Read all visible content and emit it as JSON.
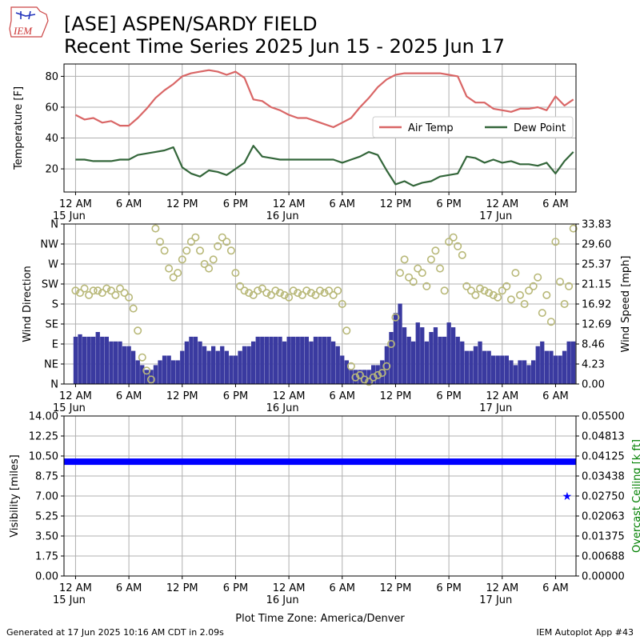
{
  "header": {
    "logo_text": "IEM",
    "title_line1": "[ASE] ASPEN/SARDY FIELD",
    "title_line2": "Recent Time Series 2025 Jun 15 - 2025 Jun 17"
  },
  "footer": {
    "left": "Generated at 17 Jun 2025 10:16 AM CDT in 2.09s",
    "right": "IEM Autoplot App #43"
  },
  "colors": {
    "air_temp": "#d96666",
    "dew_point": "#33663a",
    "wind_dir": "#b8b878",
    "wind_speed": "#3a3aa0",
    "wind_gust": "#7070ee",
    "visibility": "#0000ff",
    "ceiling": "#008000",
    "grid": "#b0b0b0"
  },
  "chart_data": [
    {
      "type": "line",
      "ylabel": "Temperature [F]",
      "ylim": [
        5,
        88
      ],
      "yticks": [
        "20",
        "40",
        "60",
        "80"
      ],
      "xlim": [
        -1.3,
        56.3
      ],
      "xticks": [
        {
          "h": 0,
          "label": "12 AM",
          "sub": "15 Jun"
        },
        {
          "h": 6,
          "label": "6 AM",
          "sub": ""
        },
        {
          "h": 12,
          "label": "12 PM",
          "sub": ""
        },
        {
          "h": 18,
          "label": "6 PM",
          "sub": ""
        },
        {
          "h": 24,
          "label": "12 AM",
          "sub": "16 Jun"
        },
        {
          "h": 30,
          "label": "6 AM",
          "sub": ""
        },
        {
          "h": 36,
          "label": "12 PM",
          "sub": ""
        },
        {
          "h": 42,
          "label": "6 PM",
          "sub": ""
        },
        {
          "h": 48,
          "label": "12 AM",
          "sub": "17 Jun"
        },
        {
          "h": 54,
          "label": "6 AM",
          "sub": ""
        }
      ],
      "legend_position": "right",
      "series": [
        {
          "name": "Air Temp",
          "x": [
            0,
            1,
            2,
            3,
            4,
            5,
            6,
            7,
            8,
            9,
            10,
            11,
            12,
            13,
            14,
            15,
            16,
            17,
            18,
            19,
            20,
            21,
            22,
            23,
            24,
            25,
            26,
            27,
            28,
            29,
            30,
            31,
            32,
            33,
            34,
            35,
            36,
            37,
            38,
            39,
            40,
            41,
            42,
            43,
            44,
            45,
            46,
            47,
            48,
            49,
            50,
            51,
            52,
            53,
            54,
            55,
            56
          ],
          "y": [
            55,
            52,
            53,
            50,
            51,
            48,
            48,
            53,
            59,
            66,
            71,
            75,
            80,
            82,
            83,
            84,
            83,
            81,
            83,
            79,
            65,
            64,
            60,
            58,
            55,
            53,
            53,
            51,
            49,
            47,
            50,
            53,
            60,
            66,
            73,
            78,
            81,
            82,
            82,
            82,
            82,
            82,
            81,
            80,
            67,
            63,
            63,
            59,
            58,
            57,
            59,
            59,
            60,
            58,
            67,
            61,
            65
          ]
        },
        {
          "name": "Dew Point",
          "x": [
            0,
            1,
            2,
            3,
            4,
            5,
            6,
            7,
            8,
            9,
            10,
            11,
            12,
            13,
            14,
            15,
            16,
            17,
            18,
            19,
            20,
            21,
            22,
            23,
            24,
            25,
            26,
            27,
            28,
            29,
            30,
            31,
            32,
            33,
            34,
            35,
            36,
            37,
            38,
            39,
            40,
            41,
            42,
            43,
            44,
            45,
            46,
            47,
            48,
            49,
            50,
            51,
            52,
            53,
            54,
            55,
            56
          ],
          "y": [
            26,
            26,
            25,
            25,
            25,
            26,
            26,
            29,
            30,
            31,
            32,
            34,
            21,
            17,
            15,
            19,
            18,
            16,
            20,
            24,
            35,
            28,
            27,
            26,
            26,
            26,
            26,
            26,
            26,
            26,
            24,
            26,
            28,
            31,
            29,
            19,
            10,
            12,
            9,
            11,
            12,
            15,
            16,
            17,
            28,
            27,
            24,
            26,
            24,
            25,
            23,
            23,
            22,
            24,
            17,
            25,
            31
          ]
        }
      ]
    },
    {
      "type": "scatter",
      "ylabel": "Wind Direction",
      "ylabel_right": "Wind Speed [mph]",
      "ylim": [
        0,
        360
      ],
      "yticks": [
        "N",
        "NE",
        "E",
        "SE",
        "S",
        "SW",
        "W",
        "NW",
        "N"
      ],
      "ylim_right": [
        0,
        33.83
      ],
      "yticks_right": [
        "0.00",
        "4.23",
        "8.46",
        "12.69",
        "16.92",
        "21.15",
        "25.37",
        "29.60",
        "33.83"
      ],
      "series": [
        {
          "name": "",
          "kind": "wind direction",
          "x": [
            0,
            0.5,
            1,
            1.5,
            2,
            2.5,
            3,
            3.5,
            4,
            4.5,
            5,
            5.5,
            6,
            6.5,
            7,
            7.5,
            8,
            8.5,
            9,
            9.5,
            10,
            10.5,
            11,
            11.5,
            12,
            12.5,
            13,
            13.5,
            14,
            14.5,
            15,
            15.5,
            16,
            16.5,
            17,
            17.5,
            18,
            18.5,
            19,
            19.5,
            20,
            20.5,
            21,
            21.5,
            22,
            22.5,
            23,
            23.5,
            24,
            24.5,
            25,
            25.5,
            26,
            26.5,
            27,
            27.5,
            28,
            28.5,
            29,
            29.5,
            30,
            30.5,
            31,
            31.5,
            32,
            32.5,
            33,
            33.5,
            34,
            34.5,
            35,
            35.5,
            36,
            36.5,
            37,
            37.5,
            38,
            38.5,
            39,
            39.5,
            40,
            40.5,
            41,
            41.5,
            42,
            42.5,
            43,
            43.5,
            44,
            44.5,
            45,
            45.5,
            46,
            46.5,
            47,
            47.5,
            48,
            48.5,
            49,
            49.5,
            50,
            50.5,
            51,
            51.5,
            52,
            52.5,
            53,
            53.5,
            54,
            54.5,
            55,
            55.5,
            56
          ],
          "y": [
            210,
            205,
            215,
            200,
            210,
            210,
            205,
            215,
            210,
            200,
            215,
            205,
            195,
            170,
            120,
            60,
            30,
            10,
            350,
            320,
            300,
            260,
            240,
            250,
            280,
            300,
            320,
            330,
            300,
            270,
            260,
            280,
            310,
            330,
            320,
            300,
            250,
            220,
            210,
            205,
            200,
            210,
            215,
            205,
            200,
            210,
            205,
            200,
            195,
            210,
            205,
            200,
            210,
            205,
            200,
            210,
            205,
            210,
            200,
            210,
            180,
            120,
            40,
            15,
            20,
            10,
            5,
            15,
            20,
            25,
            40,
            90,
            150,
            250,
            280,
            240,
            230,
            260,
            250,
            220,
            280,
            300,
            260,
            210,
            320,
            330,
            310,
            290,
            220,
            210,
            200,
            215,
            210,
            205,
            200,
            195,
            210,
            220,
            190,
            250,
            200,
            180,
            210,
            220,
            240,
            160,
            200,
            140,
            320,
            230,
            180,
            220,
            350
          ]
        },
        {
          "name": "",
          "kind": "wind speed",
          "x": [
            0,
            0.5,
            1,
            1.5,
            2,
            2.5,
            3,
            3.5,
            4,
            4.5,
            5,
            5.5,
            6,
            6.5,
            7,
            7.5,
            8,
            8.5,
            9,
            9.5,
            10,
            10.5,
            11,
            11.5,
            12,
            12.5,
            13,
            13.5,
            14,
            14.5,
            15,
            15.5,
            16,
            16.5,
            17,
            17.5,
            18,
            18.5,
            19,
            19.5,
            20,
            20.5,
            21,
            21.5,
            22,
            22.5,
            23,
            23.5,
            24,
            24.5,
            25,
            25.5,
            26,
            26.5,
            27,
            27.5,
            28,
            28.5,
            29,
            29.5,
            30,
            30.5,
            31,
            31.5,
            32,
            32.5,
            33,
            33.5,
            34,
            34.5,
            35,
            35.5,
            36,
            36.5,
            37,
            37.5,
            38,
            38.5,
            39,
            39.5,
            40,
            40.5,
            41,
            41.5,
            42,
            42.5,
            43,
            43.5,
            44,
            44.5,
            45,
            45.5,
            46,
            46.5,
            47,
            47.5,
            48,
            48.5,
            49,
            49.5,
            50,
            50.5,
            51,
            51.5,
            52,
            52.5,
            53,
            53.5,
            54,
            54.5,
            55,
            55.5,
            56
          ],
          "y": [
            10,
            10.5,
            10,
            10,
            10,
            11,
            10,
            10,
            9,
            9,
            9,
            8,
            8,
            7,
            5,
            4,
            3,
            3,
            4,
            5,
            6,
            6,
            5,
            5,
            7,
            9,
            10,
            10,
            9,
            8,
            7,
            8,
            7,
            8,
            7,
            6,
            6,
            7,
            8,
            8,
            9,
            10,
            10,
            10,
            10,
            10,
            10,
            9,
            10,
            10,
            10,
            10,
            10,
            9,
            10,
            10,
            10,
            10,
            9,
            8,
            6,
            5,
            3,
            3,
            3,
            3,
            3,
            4,
            4,
            5,
            8,
            11,
            15,
            17,
            12,
            10,
            9,
            13,
            12,
            9,
            11,
            12,
            10,
            10,
            13,
            12,
            10,
            9,
            7,
            7,
            8,
            9,
            7,
            7,
            6,
            6,
            6,
            6,
            5,
            4,
            5,
            5,
            4,
            5,
            8,
            9,
            7,
            7,
            6,
            6,
            7,
            9,
            9
          ]
        }
      ]
    },
    {
      "type": "scatter",
      "ylabel": "Visibility [miles]",
      "ylabel_right": "Overcast Ceiling [k ft]",
      "ylim": [
        0,
        14
      ],
      "yticks": [
        "0.00",
        "1.75",
        "3.50",
        "5.25",
        "7.00",
        "8.75",
        "10.50",
        "12.25",
        "14.00"
      ],
      "ylim_right": [
        0,
        0.055
      ],
      "yticks_right": [
        "0.00000",
        "0.00688",
        "0.01375",
        "0.02063",
        "0.02750",
        "0.03438",
        "0.04125",
        "0.04813",
        "0.05500"
      ],
      "series": [
        {
          "name": "",
          "kind": "visibility",
          "x": [
            0,
            56
          ],
          "y": [
            10,
            10
          ]
        },
        {
          "name": "",
          "kind": "ceiling",
          "x": [
            55.3
          ],
          "y": [
            0.0275
          ]
        }
      ],
      "xlabel": "Plot Time Zone: America/Denver"
    }
  ]
}
